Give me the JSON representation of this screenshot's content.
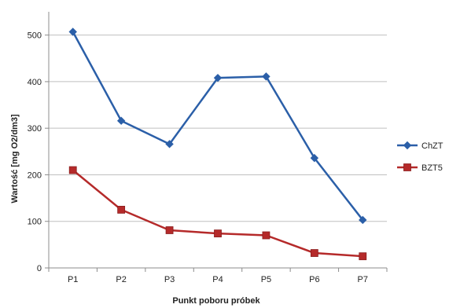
{
  "chart_data": {
    "type": "line",
    "categories": [
      "P1",
      "P2",
      "P3",
      "P4",
      "P5",
      "P6",
      "P7"
    ],
    "series": [
      {
        "name": "ChZT",
        "values": [
          507,
          316,
          266,
          408,
          411,
          236,
          103
        ],
        "color": "#2b5fa8",
        "marker": "diamond"
      },
      {
        "name": "BZT5",
        "values": [
          210,
          125,
          81,
          74,
          70,
          32,
          25
        ],
        "color": "#b52a2a",
        "marker": "square"
      }
    ],
    "xlabel": "Punkt poboru próbek",
    "ylabel": "Wartość [mg O2/dm3]",
    "ylim": [
      0,
      550
    ],
    "yticks": [
      0,
      100,
      200,
      300,
      400,
      500
    ],
    "grid": true,
    "legend": "right"
  }
}
